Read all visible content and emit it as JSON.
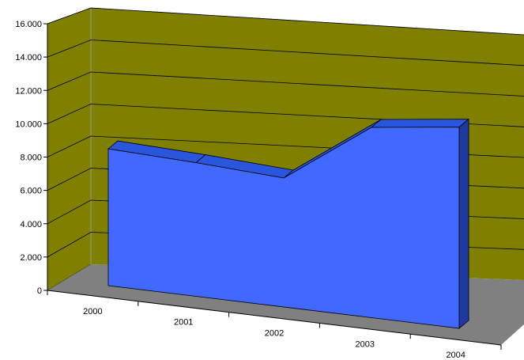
{
  "chart_data": {
    "type": "area",
    "style": "3d",
    "categories": [
      "2000",
      "2001",
      "2002",
      "2003",
      "2004"
    ],
    "values": [
      8700,
      8500,
      8200,
      12100,
      12800
    ],
    "y_tick_labels": [
      "0",
      "2.000",
      "4.000",
      "6.000",
      "8.000",
      "10.000",
      "12.000",
      "14.000",
      "16.000"
    ],
    "ylim": [
      0,
      16000
    ],
    "title": "",
    "xlabel": "",
    "ylabel": "",
    "grid": true,
    "legend": "none",
    "colors": {
      "wall": "#808000",
      "floor": "#808080",
      "area_front": "#4169FF",
      "area_top": "#2A55DD",
      "area_side": "#1E3A9E",
      "gridline": "#000000"
    }
  }
}
